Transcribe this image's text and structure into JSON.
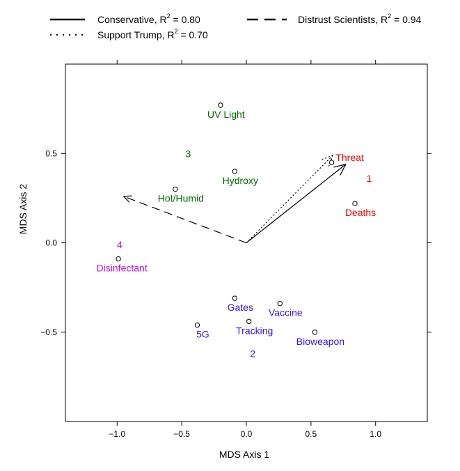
{
  "chart_data": {
    "type": "scatter",
    "title": "",
    "xlabel": "MDS Axis 1",
    "ylabel": "MDS Axis 2",
    "xlim": [
      -1.4,
      1.4
    ],
    "ylim": [
      -1.0,
      1.0
    ],
    "x_ticks": [
      -1.0,
      -0.5,
      0.0,
      0.5,
      1.0
    ],
    "x_tick_labels": [
      "−1.0",
      "−0.5",
      "0.0",
      "0.5",
      "1.0"
    ],
    "y_ticks": [
      -0.5,
      0.0,
      0.5
    ],
    "y_tick_labels": [
      "−0.5",
      "0.0",
      "0.5"
    ],
    "grid": false,
    "legend_position": "top",
    "colors": {
      "cluster1": "#ee0000",
      "cluster2": "#3311ee",
      "cluster3": "#006600",
      "cluster4": "#bb11ee"
    },
    "points": [
      {
        "label": "UV Light",
        "x": -0.2,
        "y": 0.77,
        "cluster": "3"
      },
      {
        "label": "Hydroxy",
        "x": -0.09,
        "y": 0.4,
        "cluster": "3"
      },
      {
        "label": "Hot/Humid",
        "x": -0.55,
        "y": 0.3,
        "cluster": "3"
      },
      {
        "label": "Threat",
        "x": 0.66,
        "y": 0.45,
        "cluster": "1"
      },
      {
        "label": "Deaths",
        "x": 0.84,
        "y": 0.22,
        "cluster": "1"
      },
      {
        "label": "Disinfectant",
        "x": -0.99,
        "y": -0.09,
        "cluster": "4"
      },
      {
        "label": "Gates",
        "x": -0.09,
        "y": -0.31,
        "cluster": "2"
      },
      {
        "label": "Vaccine",
        "x": 0.26,
        "y": -0.34,
        "cluster": "2"
      },
      {
        "label": "Tracking",
        "x": 0.02,
        "y": -0.44,
        "cluster": "2"
      },
      {
        "label": "5G",
        "x": -0.38,
        "y": -0.46,
        "cluster": "2"
      },
      {
        "label": "Bioweapon",
        "x": 0.53,
        "y": -0.5,
        "cluster": "2"
      }
    ],
    "cluster_labels": [
      {
        "label": "1",
        "x": 0.95,
        "y": 0.36,
        "cluster": "1"
      },
      {
        "label": "2",
        "x": 0.05,
        "y": -0.62,
        "cluster": "2"
      },
      {
        "label": "3",
        "x": -0.45,
        "y": 0.5,
        "cluster": "3"
      },
      {
        "label": "4",
        "x": -0.98,
        "y": -0.01,
        "cluster": "4"
      }
    ],
    "vectors": [
      {
        "name": "Conservative",
        "r2": "0.80",
        "style": "solid",
        "x": 0.77,
        "y": 0.44
      },
      {
        "name": "Support Trump",
        "r2": "0.70",
        "style": "dotted",
        "x": 0.67,
        "y": 0.49
      },
      {
        "name": "Distrust Scientists",
        "r2": "0.94",
        "style": "dashed",
        "x": -0.95,
        "y": 0.26
      }
    ],
    "legend": [
      {
        "text": "Conservative, R",
        "sup": "2",
        "suffix": " = 0.80",
        "style": "solid"
      },
      {
        "text": "Distrust Scientists, R",
        "sup": "2",
        "suffix": " = 0.94",
        "style": "dashed"
      },
      {
        "text": "Support Trump, R",
        "sup": "2",
        "suffix": " = 0.70",
        "style": "dotted"
      }
    ]
  }
}
